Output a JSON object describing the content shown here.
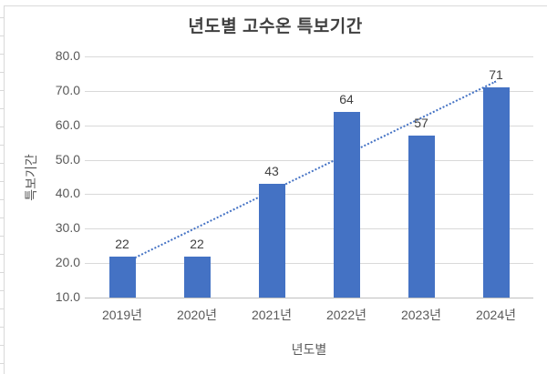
{
  "chart_data": {
    "type": "bar",
    "title": "년도별 고수온 특보기간",
    "xlabel": "년도별",
    "ylabel": "특보기간",
    "categories": [
      "2019년",
      "2020년",
      "2021년",
      "2022년",
      "2023년",
      "2024년"
    ],
    "values": [
      22,
      22,
      43,
      64,
      57,
      71
    ],
    "data_labels": [
      22,
      22,
      43,
      64,
      57,
      71
    ],
    "ylim": [
      10,
      80
    ],
    "ytick_step": 10,
    "ytick_labels": [
      "10.0",
      "20.0",
      "30.0",
      "40.0",
      "50.0",
      "60.0",
      "70.0",
      "80.0"
    ],
    "grid": true,
    "legend": "none",
    "bar_color": "#4472c4",
    "trendline": {
      "style": "dotted",
      "color": "#4472c4",
      "value_at_first_category": 20,
      "value_at_last_category": 73
    }
  }
}
